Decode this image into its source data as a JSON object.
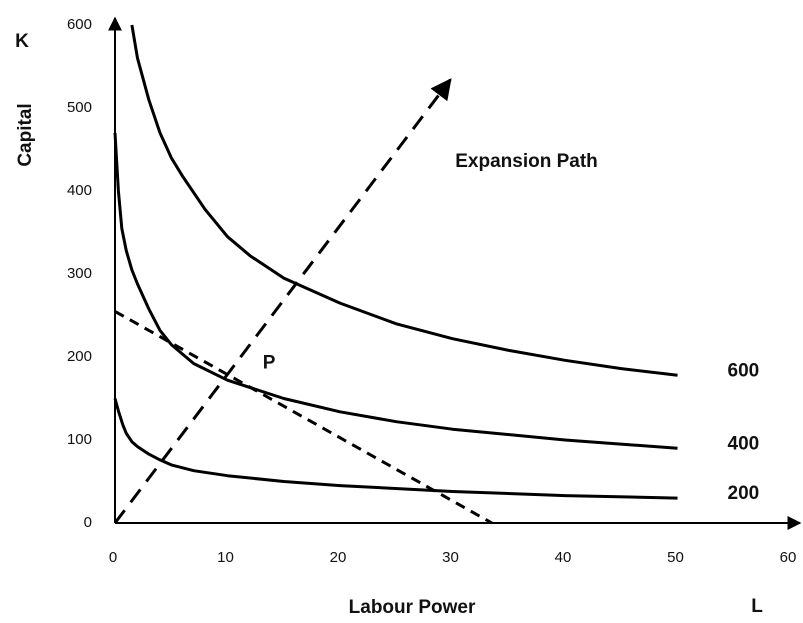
{
  "chart_data": {
    "type": "line",
    "x_label": "Labour Power",
    "y_label": "Capital",
    "x_symbol": "L",
    "y_symbol": "K",
    "xlim": [
      0,
      60
    ],
    "xticks": [
      0,
      10,
      20,
      30,
      40,
      50,
      60
    ],
    "ylim": [
      0,
      600
    ],
    "yticks": [
      0,
      100,
      200,
      300,
      400,
      500,
      600
    ],
    "series": [
      {
        "name": "600",
        "color": "#000000",
        "x": [
          1.5,
          2,
          3,
          4,
          5,
          6,
          8,
          10,
          12,
          15,
          20,
          25,
          30,
          35,
          40,
          45,
          50
        ],
        "values": [
          600,
          560,
          510,
          470,
          440,
          418,
          378,
          345,
          322,
          295,
          265,
          240,
          222,
          208,
          196,
          186,
          178
        ]
      },
      {
        "name": "400",
        "color": "#000000",
        "x": [
          0,
          0.3,
          0.6,
          1,
          1.5,
          2,
          3,
          4,
          5,
          7,
          10,
          15,
          20,
          25,
          30,
          40,
          50
        ],
        "values": [
          470,
          400,
          355,
          328,
          305,
          288,
          258,
          232,
          215,
          192,
          172,
          150,
          134,
          122,
          113,
          100,
          90
        ]
      },
      {
        "name": "200",
        "color": "#000000",
        "x": [
          0,
          0.3,
          0.7,
          1,
          1.5,
          2,
          3,
          4,
          5,
          7,
          10,
          15,
          20,
          30,
          40,
          50
        ],
        "values": [
          150,
          135,
          118,
          108,
          98,
          92,
          83,
          76,
          70,
          63,
          57,
          50,
          45,
          38,
          33,
          30
        ]
      },
      {
        "name": "Expansion Path",
        "color": "#000000",
        "dashed": true,
        "arrow": true,
        "x": [
          0,
          29.8
        ],
        "values": [
          0,
          534
        ]
      },
      {
        "color": "#000000",
        "dashed": true,
        "x": [
          0,
          33.5
        ],
        "values": [
          255,
          0
        ]
      }
    ],
    "annotations": [
      {
        "text": "P",
        "x": 13.7,
        "y": 192
      }
    ]
  }
}
